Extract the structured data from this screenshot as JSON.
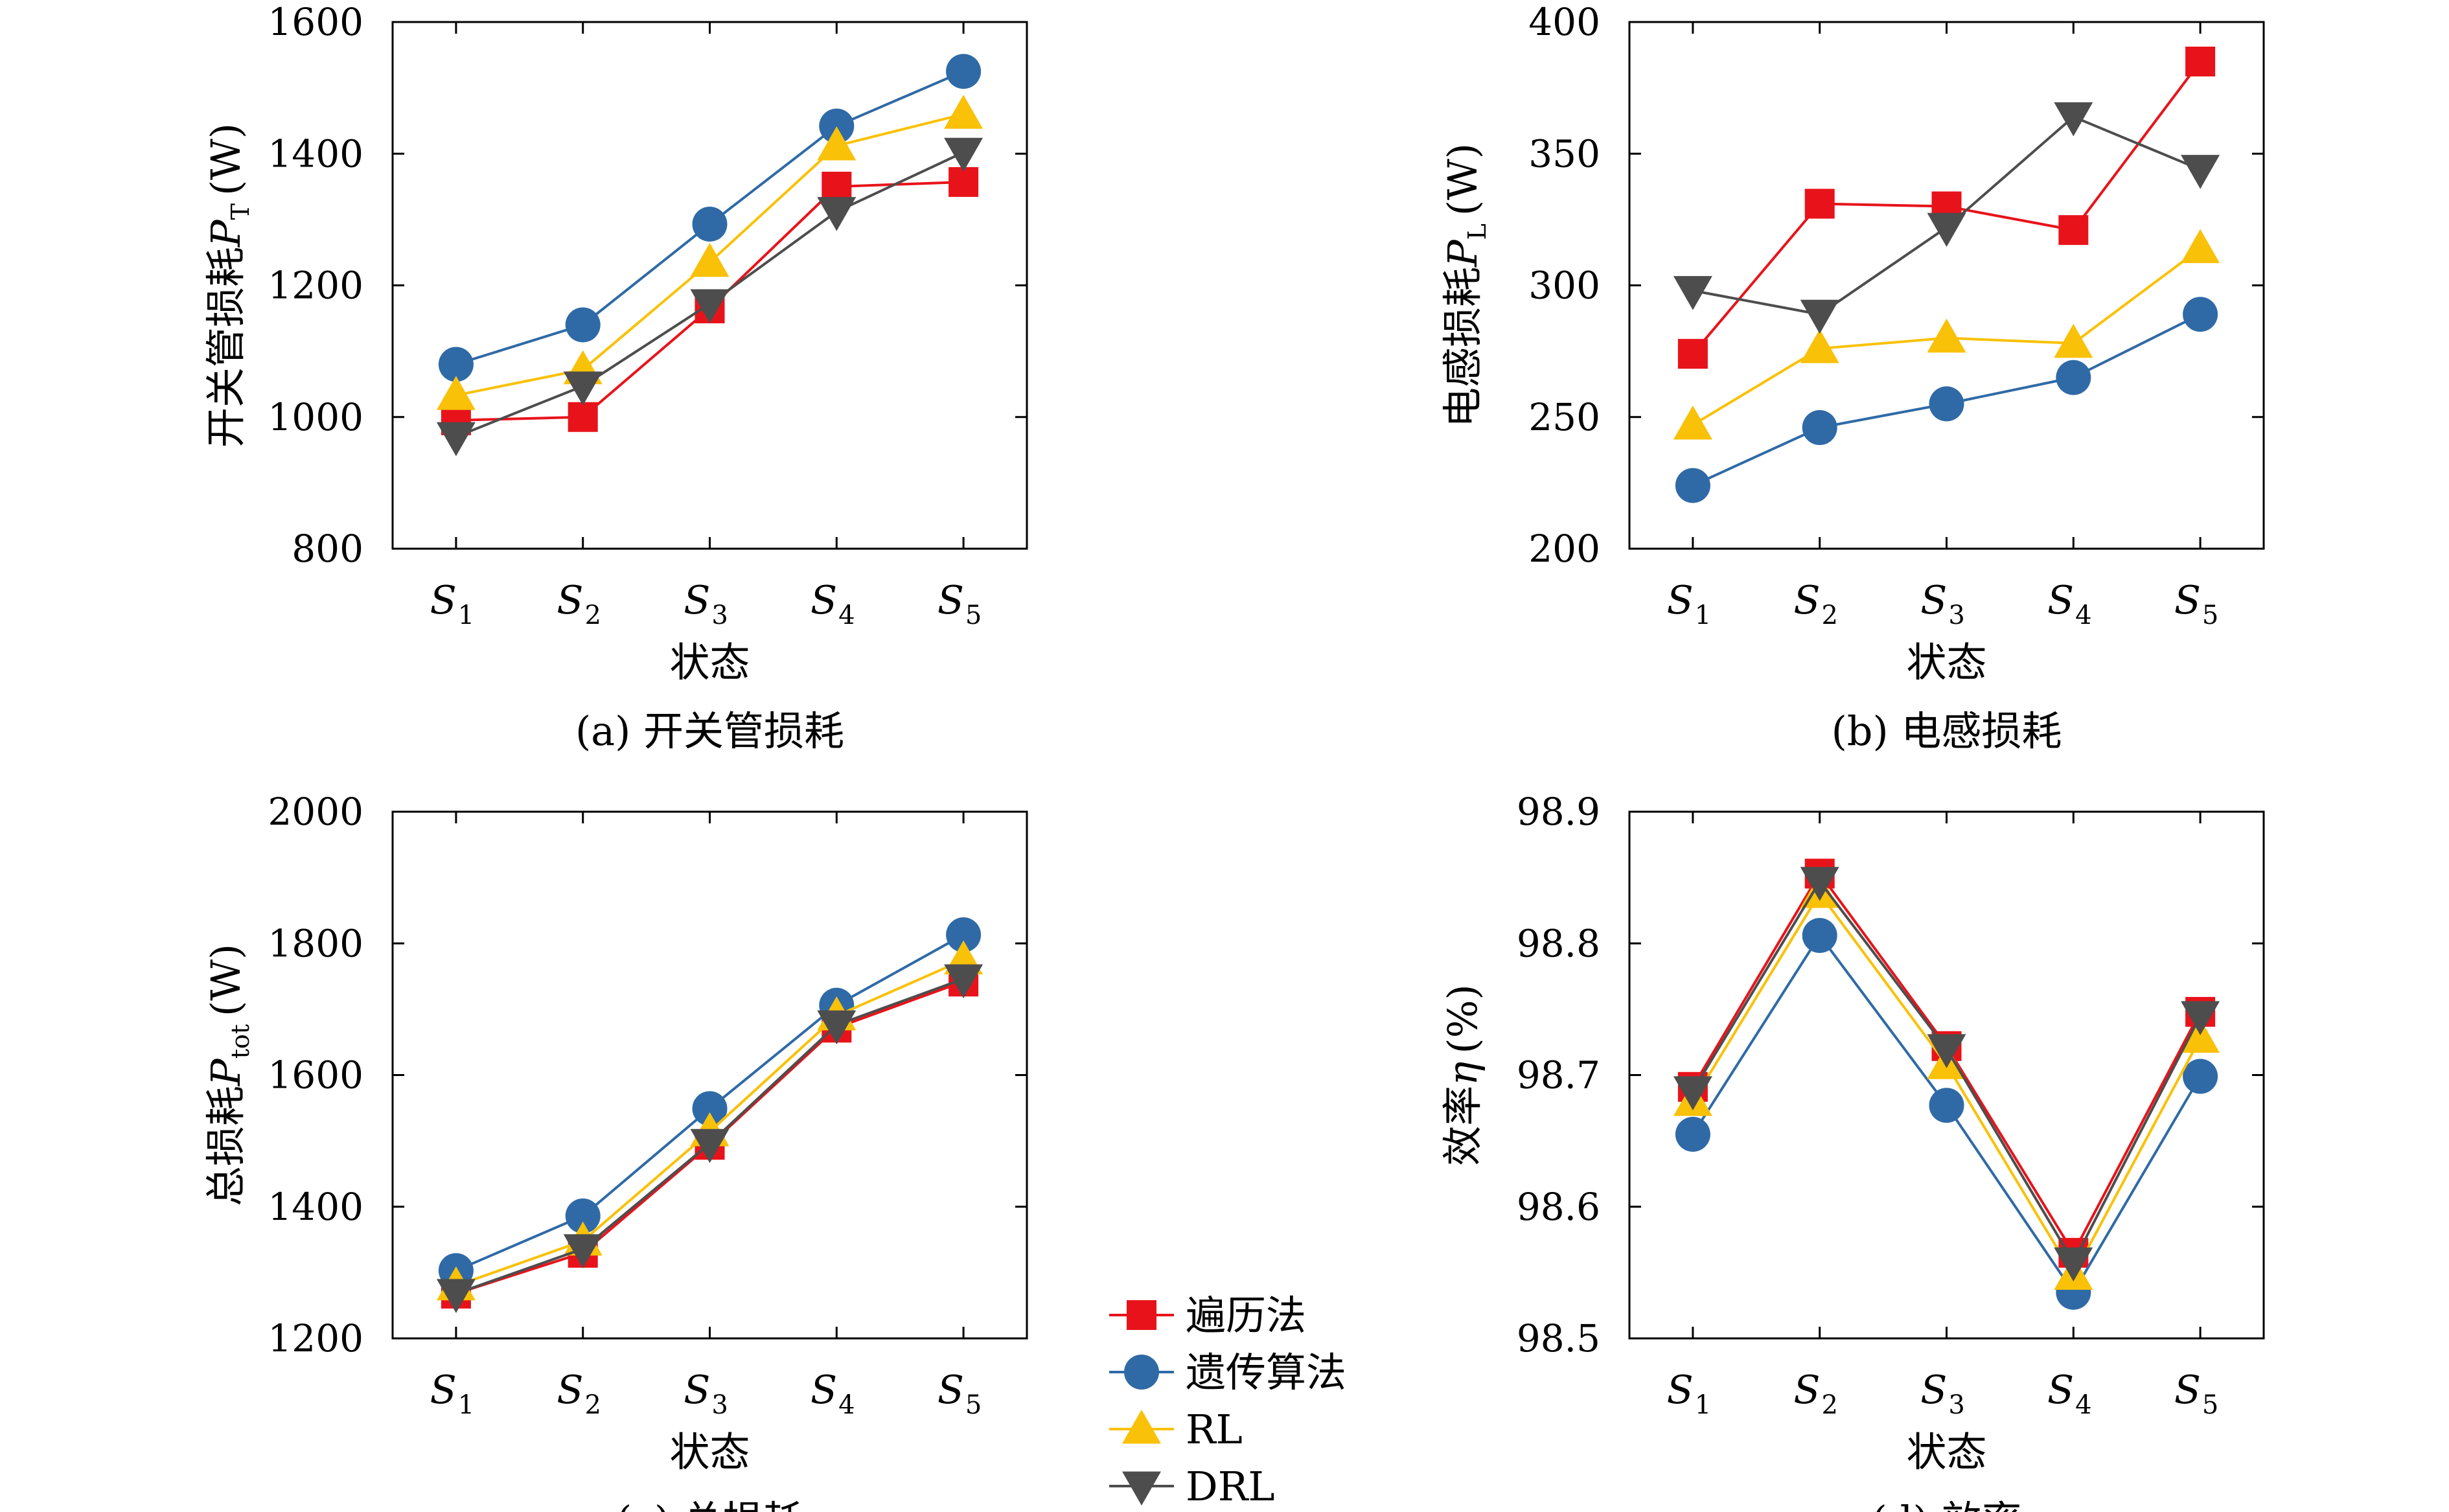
{
  "legend": {
    "entries": [
      {
        "label": "遍历法",
        "color": "#e8131a",
        "marker": "square"
      },
      {
        "label": "遗传算法",
        "color": "#2f6aa6",
        "marker": "circle"
      },
      {
        "label": "RL",
        "color": "#f9c107",
        "marker": "triangle-up"
      },
      {
        "label": "DRL",
        "color": "#4d4d4d",
        "marker": "triangle-down"
      }
    ]
  },
  "chart_data": [
    {
      "type": "line",
      "caption": "(a) 开关管损耗",
      "xlabel": "状态",
      "ylabel": {
        "text": "开关管损耗",
        "symbol": "P",
        "subscript": "T",
        "unit": "(W)"
      },
      "categories": [
        {
          "base": "S",
          "sub": "1"
        },
        {
          "base": "S",
          "sub": "2"
        },
        {
          "base": "S",
          "sub": "3"
        },
        {
          "base": "S",
          "sub": "4"
        },
        {
          "base": "S",
          "sub": "5"
        }
      ],
      "ylim": [
        800,
        1600
      ],
      "yticks": [
        "800",
        "1000",
        "1200",
        "1400",
        "1600"
      ],
      "series": [
        {
          "name": "遍历法",
          "values": [
            995,
            1000,
            1165,
            1350,
            1357
          ]
        },
        {
          "name": "遗传算法",
          "values": [
            1080,
            1140,
            1293,
            1442,
            1525
          ]
        },
        {
          "name": "RL",
          "values": [
            1033,
            1072,
            1235,
            1412,
            1460
          ]
        },
        {
          "name": "DRL",
          "values": [
            970,
            1047,
            1172,
            1312,
            1402
          ]
        }
      ]
    },
    {
      "type": "line",
      "caption": "(b) 电感损耗",
      "xlabel": "状态",
      "ylabel": {
        "text": "电感损耗",
        "symbol": "P",
        "subscript": "L",
        "unit": "(W)"
      },
      "categories": [
        {
          "base": "S",
          "sub": "1"
        },
        {
          "base": "S",
          "sub": "2"
        },
        {
          "base": "S",
          "sub": "3"
        },
        {
          "base": "S",
          "sub": "4"
        },
        {
          "base": "S",
          "sub": "5"
        }
      ],
      "ylim": [
        200,
        400
      ],
      "yticks": [
        "200",
        "250",
        "300",
        "350",
        "400"
      ],
      "series": [
        {
          "name": "遍历法",
          "values": [
            274,
            331,
            330,
            321,
            385
          ]
        },
        {
          "name": "遗传算法",
          "values": [
            224,
            246,
            255,
            265,
            289
          ]
        },
        {
          "name": "RL",
          "values": [
            247,
            276,
            280,
            278,
            314
          ]
        },
        {
          "name": "DRL",
          "values": [
            298,
            289,
            322,
            364,
            344
          ]
        }
      ]
    },
    {
      "type": "line",
      "caption": "(c) 总损耗",
      "xlabel": "状态",
      "ylabel": {
        "text": "总损耗",
        "symbol": "P",
        "subscript": "tot",
        "unit": "(W)"
      },
      "categories": [
        {
          "base": "S",
          "sub": "1"
        },
        {
          "base": "S",
          "sub": "2"
        },
        {
          "base": "S",
          "sub": "3"
        },
        {
          "base": "S",
          "sub": "4"
        },
        {
          "base": "S",
          "sub": "5"
        }
      ],
      "ylim": [
        1200,
        2000
      ],
      "yticks": [
        "1200",
        "1400",
        "1600",
        "1800",
        "2000"
      ],
      "series": [
        {
          "name": "遍历法",
          "values": [
            1268,
            1330,
            1494,
            1672,
            1742
          ]
        },
        {
          "name": "遗传算法",
          "values": [
            1303,
            1386,
            1549,
            1706,
            1813
          ]
        },
        {
          "name": "RL",
          "values": [
            1280,
            1348,
            1514,
            1690,
            1775
          ]
        },
        {
          "name": "DRL",
          "values": [
            1268,
            1336,
            1496,
            1676,
            1746
          ]
        }
      ]
    },
    {
      "type": "line",
      "caption": "(d) 效率",
      "xlabel": "状态",
      "ylabel": {
        "text": "效率",
        "symbol": "η",
        "subscript": "",
        "unit": "(%)"
      },
      "categories": [
        {
          "base": "S",
          "sub": "1"
        },
        {
          "base": "S",
          "sub": "2"
        },
        {
          "base": "S",
          "sub": "3"
        },
        {
          "base": "S",
          "sub": "4"
        },
        {
          "base": "S",
          "sub": "5"
        }
      ],
      "ylim": [
        98.5,
        98.9
      ],
      "yticks": [
        "98.5",
        "98.6",
        "98.7",
        "98.8",
        "98.9"
      ],
      "series": [
        {
          "name": "遍历法",
          "values": [
            98.691,
            98.853,
            98.722,
            98.565,
            98.748
          ]
        },
        {
          "name": "遗传算法",
          "values": [
            98.655,
            98.806,
            98.677,
            98.535,
            98.699
          ]
        },
        {
          "name": "RL",
          "values": [
            98.68,
            98.838,
            98.708,
            98.548,
            98.728
          ]
        },
        {
          "name": "DRL",
          "values": [
            98.688,
            98.847,
            98.72,
            98.558,
            98.745
          ]
        }
      ]
    }
  ]
}
